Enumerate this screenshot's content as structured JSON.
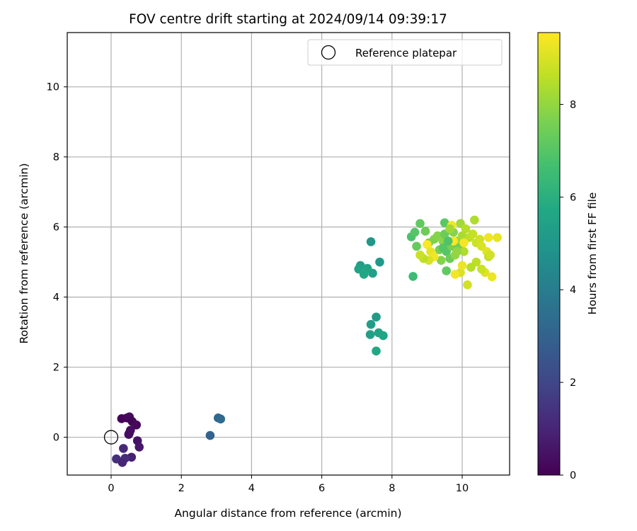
{
  "chart_data": {
    "type": "scatter",
    "title": "FOV centre drift starting at 2024/09/14 09:39:17",
    "xlabel": "Angular distance from reference (arcmin)",
    "ylabel": "Rotation from reference (arcmin)",
    "xlim": [
      -1.25,
      11.35
    ],
    "ylim": [
      -1.08,
      11.55
    ],
    "xticks": [
      0,
      2,
      4,
      6,
      8,
      10
    ],
    "yticks": [
      0,
      2,
      4,
      6,
      8,
      10
    ],
    "grid": true,
    "legend": {
      "placement": "upper-right",
      "entries": [
        "Reference platepar"
      ]
    },
    "reference_point": {
      "x": 0,
      "y": 0,
      "marker": "open-circle"
    },
    "colorbar": {
      "label": "Hours from first FF file",
      "range": [
        0,
        9.55
      ],
      "ticks": [
        0,
        2,
        4,
        6,
        8
      ],
      "colormap": "viridis"
    },
    "points": [
      {
        "x": 0.3,
        "y": 0.53,
        "h": 0.05
      },
      {
        "x": 0.45,
        "y": 0.55,
        "h": 0.15
      },
      {
        "x": 0.52,
        "y": 0.58,
        "h": 0.25
      },
      {
        "x": 0.6,
        "y": 0.45,
        "h": 0.1
      },
      {
        "x": 0.72,
        "y": 0.35,
        "h": 0.2
      },
      {
        "x": 0.55,
        "y": 0.2,
        "h": 0.3
      },
      {
        "x": 0.52,
        "y": 0.12,
        "h": 0.4
      },
      {
        "x": 0.5,
        "y": 0.08,
        "h": 0.35
      },
      {
        "x": 0.75,
        "y": -0.1,
        "h": 0.5
      },
      {
        "x": 0.8,
        "y": -0.28,
        "h": 0.6
      },
      {
        "x": 0.58,
        "y": -0.57,
        "h": 0.85
      },
      {
        "x": 0.35,
        "y": -0.32,
        "h": 1.1
      },
      {
        "x": 0.4,
        "y": -0.6,
        "h": 1.2
      },
      {
        "x": 0.15,
        "y": -0.62,
        "h": 1.3
      },
      {
        "x": 0.32,
        "y": -0.72,
        "h": 1.0
      },
      {
        "x": 2.82,
        "y": 0.05,
        "h": 3.0
      },
      {
        "x": 3.05,
        "y": 0.55,
        "h": 3.2
      },
      {
        "x": 3.12,
        "y": 0.52,
        "h": 3.3
      },
      {
        "x": 7.4,
        "y": 5.58,
        "h": 5.0
      },
      {
        "x": 7.65,
        "y": 5.0,
        "h": 5.1
      },
      {
        "x": 7.1,
        "y": 4.9,
        "h": 5.3
      },
      {
        "x": 7.05,
        "y": 4.8,
        "h": 5.5
      },
      {
        "x": 7.3,
        "y": 4.82,
        "h": 5.6
      },
      {
        "x": 7.2,
        "y": 4.65,
        "h": 5.7
      },
      {
        "x": 7.45,
        "y": 4.68,
        "h": 5.4
      },
      {
        "x": 7.55,
        "y": 3.43,
        "h": 5.2
      },
      {
        "x": 7.4,
        "y": 3.22,
        "h": 5.3
      },
      {
        "x": 7.38,
        "y": 2.93,
        "h": 5.4
      },
      {
        "x": 7.62,
        "y": 2.98,
        "h": 5.5
      },
      {
        "x": 7.75,
        "y": 2.9,
        "h": 5.6
      },
      {
        "x": 7.55,
        "y": 2.46,
        "h": 5.7
      },
      {
        "x": 8.6,
        "y": 4.59,
        "h": 6.5
      },
      {
        "x": 8.55,
        "y": 5.72,
        "h": 6.8
      },
      {
        "x": 8.65,
        "y": 5.85,
        "h": 7.0
      },
      {
        "x": 8.8,
        "y": 6.1,
        "h": 7.2
      },
      {
        "x": 8.7,
        "y": 5.45,
        "h": 7.3
      },
      {
        "x": 8.95,
        "y": 5.88,
        "h": 7.4
      },
      {
        "x": 9.05,
        "y": 5.55,
        "h": 7.6
      },
      {
        "x": 9.2,
        "y": 5.65,
        "h": 7.7
      },
      {
        "x": 9.3,
        "y": 5.75,
        "h": 7.8
      },
      {
        "x": 9.45,
        "y": 5.6,
        "h": 7.9
      },
      {
        "x": 9.5,
        "y": 6.12,
        "h": 7.1
      },
      {
        "x": 9.55,
        "y": 5.3,
        "h": 7.0
      },
      {
        "x": 9.6,
        "y": 5.5,
        "h": 7.2
      },
      {
        "x": 9.65,
        "y": 5.1,
        "h": 7.4
      },
      {
        "x": 9.7,
        "y": 5.45,
        "h": 7.6
      },
      {
        "x": 9.75,
        "y": 5.85,
        "h": 7.8
      },
      {
        "x": 9.8,
        "y": 5.2,
        "h": 8.0
      },
      {
        "x": 9.85,
        "y": 5.6,
        "h": 8.1
      },
      {
        "x": 9.9,
        "y": 5.4,
        "h": 7.5
      },
      {
        "x": 9.95,
        "y": 6.1,
        "h": 8.2
      },
      {
        "x": 10.0,
        "y": 5.75,
        "h": 8.3
      },
      {
        "x": 10.05,
        "y": 5.3,
        "h": 8.4
      },
      {
        "x": 10.1,
        "y": 5.95,
        "h": 8.5
      },
      {
        "x": 10.2,
        "y": 5.7,
        "h": 8.6
      },
      {
        "x": 10.3,
        "y": 5.8,
        "h": 8.7
      },
      {
        "x": 10.35,
        "y": 6.2,
        "h": 8.4
      },
      {
        "x": 10.4,
        "y": 5.55,
        "h": 8.8
      },
      {
        "x": 10.5,
        "y": 5.65,
        "h": 8.9
      },
      {
        "x": 10.55,
        "y": 5.45,
        "h": 9.0
      },
      {
        "x": 10.7,
        "y": 5.3,
        "h": 9.1
      },
      {
        "x": 10.75,
        "y": 5.15,
        "h": 8.7
      },
      {
        "x": 10.8,
        "y": 5.2,
        "h": 8.9
      },
      {
        "x": 11.0,
        "y": 5.7,
        "h": 9.2
      },
      {
        "x": 10.85,
        "y": 4.58,
        "h": 9.3
      },
      {
        "x": 10.65,
        "y": 4.7,
        "h": 9.1
      },
      {
        "x": 10.55,
        "y": 4.8,
        "h": 8.8
      },
      {
        "x": 10.4,
        "y": 5.0,
        "h": 8.6
      },
      {
        "x": 10.25,
        "y": 4.85,
        "h": 8.5
      },
      {
        "x": 10.15,
        "y": 4.35,
        "h": 8.9
      },
      {
        "x": 9.95,
        "y": 4.7,
        "h": 9.0
      },
      {
        "x": 9.8,
        "y": 4.65,
        "h": 9.4
      },
      {
        "x": 10.0,
        "y": 4.9,
        "h": 9.3
      },
      {
        "x": 9.55,
        "y": 4.75,
        "h": 7.2
      },
      {
        "x": 9.4,
        "y": 5.05,
        "h": 7.8
      },
      {
        "x": 9.35,
        "y": 5.35,
        "h": 7.6
      },
      {
        "x": 9.5,
        "y": 5.8,
        "h": 7.4
      },
      {
        "x": 9.0,
        "y": 5.5,
        "h": 9.5
      },
      {
        "x": 9.1,
        "y": 5.3,
        "h": 9.2
      },
      {
        "x": 9.2,
        "y": 5.15,
        "h": 9.4
      },
      {
        "x": 9.05,
        "y": 5.05,
        "h": 9.0
      },
      {
        "x": 8.9,
        "y": 5.1,
        "h": 8.6
      },
      {
        "x": 8.8,
        "y": 5.2,
        "h": 8.8
      },
      {
        "x": 9.7,
        "y": 6.05,
        "h": 9.4
      },
      {
        "x": 9.75,
        "y": 5.6,
        "h": 9.5
      },
      {
        "x": 10.05,
        "y": 5.55,
        "h": 9.45
      },
      {
        "x": 10.75,
        "y": 5.7,
        "h": 9.35
      },
      {
        "x": 9.65,
        "y": 5.95,
        "h": 8.2
      },
      {
        "x": 9.85,
        "y": 5.3,
        "h": 8.0
      },
      {
        "x": 9.6,
        "y": 5.6,
        "h": 6.9
      },
      {
        "x": 9.45,
        "y": 5.4,
        "h": 7.0
      }
    ]
  }
}
